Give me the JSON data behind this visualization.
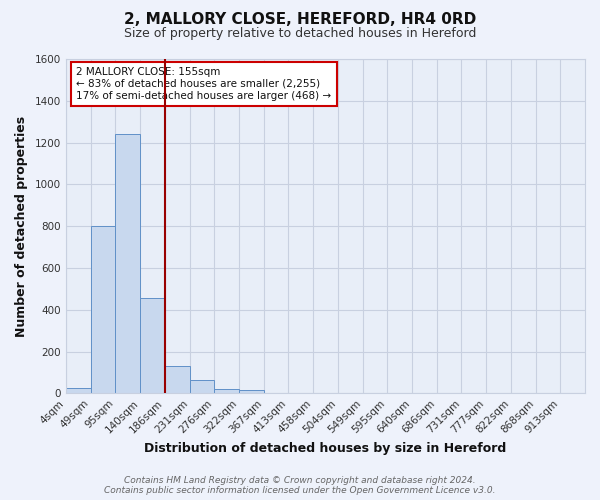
{
  "title": "2, MALLORY CLOSE, HEREFORD, HR4 0RD",
  "subtitle": "Size of property relative to detached houses in Hereford",
  "xlabel": "Distribution of detached houses by size in Hereford",
  "ylabel": "Number of detached properties",
  "bar_labels": [
    "4sqm",
    "49sqm",
    "95sqm",
    "140sqm",
    "186sqm",
    "231sqm",
    "276sqm",
    "322sqm",
    "367sqm",
    "413sqm",
    "458sqm",
    "504sqm",
    "549sqm",
    "595sqm",
    "640sqm",
    "686sqm",
    "731sqm",
    "777sqm",
    "822sqm",
    "868sqm",
    "913sqm"
  ],
  "bar_values": [
    25,
    800,
    1240,
    455,
    130,
    65,
    20,
    15,
    0,
    0,
    0,
    0,
    0,
    0,
    0,
    0,
    0,
    0,
    0,
    0,
    0
  ],
  "bar_color": "#c8d8ee",
  "bar_edge_color": "#6090c8",
  "bar_width": 1.0,
  "ylim": [
    0,
    1600
  ],
  "yticks": [
    0,
    200,
    400,
    600,
    800,
    1000,
    1200,
    1400,
    1600
  ],
  "vline_x": 4.0,
  "vline_color": "#990000",
  "annotation_title": "2 MALLORY CLOSE: 155sqm",
  "annotation_line1": "← 83% of detached houses are smaller (2,255)",
  "annotation_line2": "17% of semi-detached houses are larger (468) →",
  "annotation_box_color": "#ffffff",
  "annotation_box_edge": "#cc0000",
  "footer1": "Contains HM Land Registry data © Crown copyright and database right 2024.",
  "footer2": "Contains public sector information licensed under the Open Government Licence v3.0.",
  "bg_color": "#eef2fb",
  "plot_bg_color": "#e8eef8",
  "grid_color": "#c8d0e0",
  "title_fontsize": 11,
  "subtitle_fontsize": 9,
  "axis_label_fontsize": 9,
  "tick_fontsize": 7.5,
  "footer_fontsize": 6.5
}
